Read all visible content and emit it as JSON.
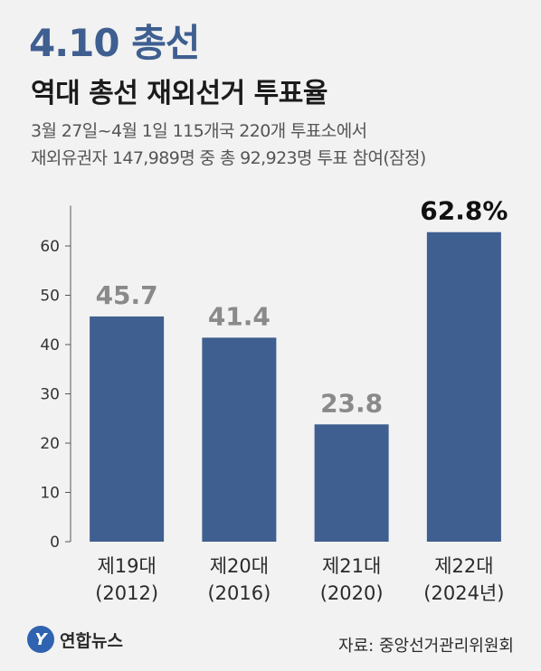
{
  "header": {
    "kicker": "4.10 총선",
    "title": "역대 총선 재외선거 투표율",
    "subtitle_line1": "3월 27일~4월 1일 115개국 220개 투표소에서",
    "subtitle_line2": "재외유권자 147,989명 중 총 92,923명 투표 참여(잠정)"
  },
  "chart_data": {
    "type": "bar",
    "categories": [
      [
        "제19대",
        "(2012)"
      ],
      [
        "제20대",
        "(2016)"
      ],
      [
        "제21대",
        "(2020)"
      ],
      [
        "제22대",
        "(2024년)"
      ]
    ],
    "values": [
      45.7,
      41.4,
      23.8,
      62.8
    ],
    "value_labels": [
      "45.7",
      "41.4",
      "23.8",
      "62.8%"
    ],
    "highlight_index": 3,
    "yticks": [
      0,
      10,
      20,
      30,
      40,
      50,
      60
    ],
    "ylim": [
      0,
      70
    ],
    "grid": false,
    "colors": {
      "bar": "#3e5f90",
      "label": "#8a8a8a",
      "highlight_label": "#111111",
      "axis": "#555555"
    }
  },
  "footer": {
    "logo_mark": "Y",
    "logo_text": "연합뉴스",
    "source": "자료: 중앙선거관리위원회"
  }
}
